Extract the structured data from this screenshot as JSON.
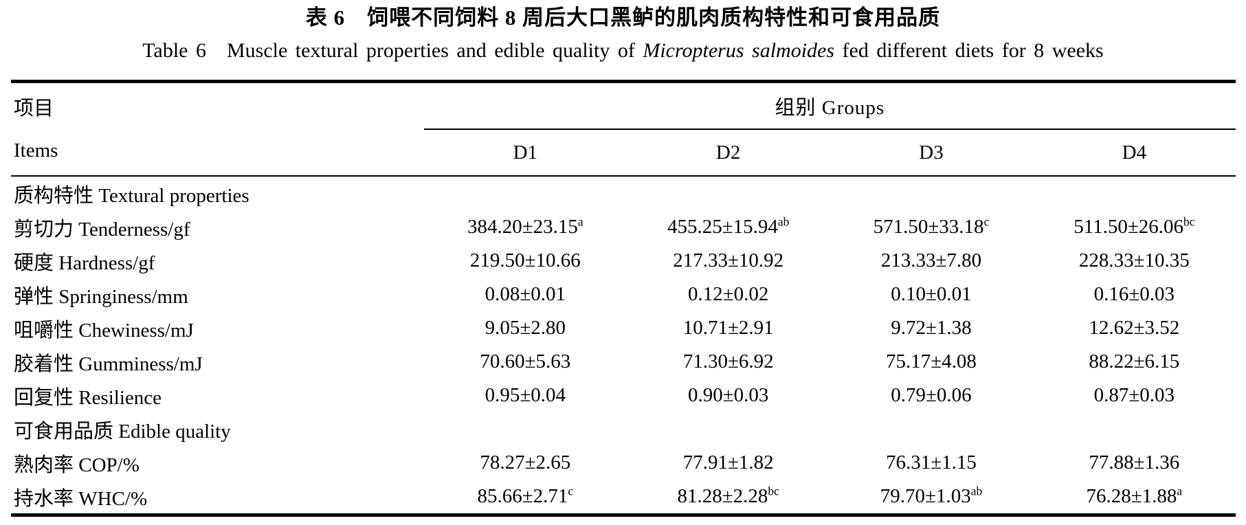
{
  "page": {
    "title_zh": "表 6　饲喂不同饲料 8 周后大口黑鲈的肌肉质构特性和可食用品质",
    "title_en_prefix": "Table 6　Muscle textural properties and edible quality of ",
    "title_en_species": "Micropterus salmoides",
    "title_en_suffix": " fed different diets for 8 weeks"
  },
  "table": {
    "header": {
      "items_label_zh": "项目",
      "items_label_en": "Items",
      "groups_label": "组别 Groups",
      "group_columns": [
        "D1",
        "D2",
        "D3",
        "D4"
      ]
    },
    "rows": [
      {
        "type": "section",
        "label": "质构特性 Textural properties",
        "values": []
      },
      {
        "type": "data",
        "label": "剪切力 Tenderness/gf",
        "values": [
          {
            "text": "384.20±23.15",
            "sup": "a"
          },
          {
            "text": "455.25±15.94",
            "sup": "ab"
          },
          {
            "text": "571.50±33.18",
            "sup": "c"
          },
          {
            "text": "511.50±26.06",
            "sup": "bc"
          }
        ]
      },
      {
        "type": "data",
        "label": "硬度 Hardness/gf",
        "values": [
          {
            "text": "219.50±10.66",
            "sup": ""
          },
          {
            "text": "217.33±10.92",
            "sup": ""
          },
          {
            "text": "213.33±7.80",
            "sup": ""
          },
          {
            "text": "228.33±10.35",
            "sup": ""
          }
        ]
      },
      {
        "type": "data",
        "label": "弹性 Springiness/mm",
        "values": [
          {
            "text": "0.08±0.01",
            "sup": ""
          },
          {
            "text": "0.12±0.02",
            "sup": ""
          },
          {
            "text": "0.10±0.01",
            "sup": ""
          },
          {
            "text": "0.16±0.03",
            "sup": ""
          }
        ]
      },
      {
        "type": "data",
        "label": "咀嚼性 Chewiness/mJ",
        "values": [
          {
            "text": "9.05±2.80",
            "sup": ""
          },
          {
            "text": "10.71±2.91",
            "sup": ""
          },
          {
            "text": "9.72±1.38",
            "sup": ""
          },
          {
            "text": "12.62±3.52",
            "sup": ""
          }
        ]
      },
      {
        "type": "data",
        "label": "胶着性 Gumminess/mJ",
        "values": [
          {
            "text": "70.60±5.63",
            "sup": ""
          },
          {
            "text": "71.30±6.92",
            "sup": ""
          },
          {
            "text": "75.17±4.08",
            "sup": ""
          },
          {
            "text": "88.22±6.15",
            "sup": ""
          }
        ]
      },
      {
        "type": "data",
        "label": "回复性 Resilience",
        "values": [
          {
            "text": "0.95±0.04",
            "sup": ""
          },
          {
            "text": "0.90±0.03",
            "sup": ""
          },
          {
            "text": "0.79±0.06",
            "sup": ""
          },
          {
            "text": "0.87±0.03",
            "sup": ""
          }
        ]
      },
      {
        "type": "section",
        "label": "可食用品质 Edible quality",
        "values": []
      },
      {
        "type": "data",
        "label": "熟肉率 COP/%",
        "values": [
          {
            "text": "78.27±2.65",
            "sup": ""
          },
          {
            "text": "77.91±1.82",
            "sup": ""
          },
          {
            "text": "76.31±1.15",
            "sup": ""
          },
          {
            "text": "77.88±1.36",
            "sup": ""
          }
        ]
      },
      {
        "type": "data",
        "label": "持水率 WHC/%",
        "values": [
          {
            "text": "85.66±2.71",
            "sup": "c"
          },
          {
            "text": "81.28±2.28",
            "sup": "bc"
          },
          {
            "text": "79.70±1.03",
            "sup": "ab"
          },
          {
            "text": "76.28±1.88",
            "sup": "a"
          }
        ]
      }
    ]
  }
}
